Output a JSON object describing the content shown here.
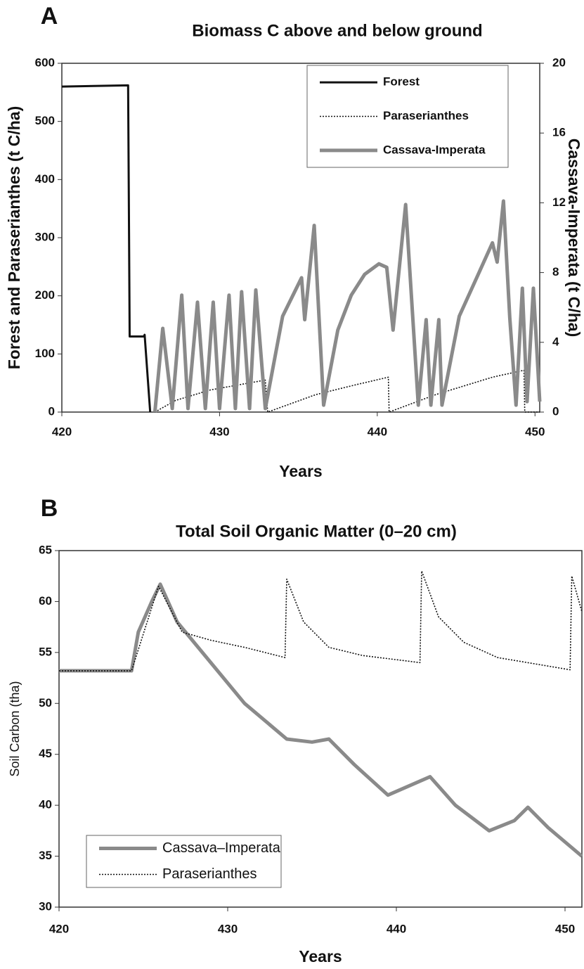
{
  "chart_data": [
    {
      "type": "line",
      "panel_label": "A",
      "title": "Biomass C above and below ground",
      "x_label": "Years",
      "y_label": "Forest and Paraserianthes (t C/ha)",
      "y2_label": "Cassava-Imperata (t C/ha)",
      "xlim": [
        420,
        450.3
      ],
      "xticks": [
        420,
        430,
        440,
        450
      ],
      "ylim": [
        0,
        600
      ],
      "yticks": [
        0,
        100,
        200,
        300,
        400,
        500,
        600
      ],
      "y2lim": [
        0,
        20
      ],
      "y2ticks": [
        0,
        4,
        8,
        12,
        16,
        20
      ],
      "legend": "upper right",
      "series": [
        {
          "name": "Forest",
          "color": "#111111",
          "style": "solid",
          "x": [
            420,
            424.2,
            424.25,
            424.3,
            425.2,
            425.25,
            425.6
          ],
          "values": [
            560,
            562,
            350,
            130,
            130,
            133,
            0
          ]
        },
        {
          "name": "Paraserianthes",
          "color": "#111111",
          "style": "dotted",
          "x": [
            425.9,
            427.2,
            429.4,
            432.9,
            433.05,
            436.1,
            438.8,
            440.7,
            440.75,
            443.7,
            447.3,
            449.3,
            449.35,
            450.3
          ],
          "values": [
            0,
            20,
            38,
            55,
            0,
            30,
            48,
            60,
            0,
            30,
            60,
            72,
            0,
            0
          ]
        },
        {
          "name": "Cassava-Imperata",
          "color": "#8a8a8a",
          "style": "thick",
          "axis": "y2",
          "x": [
            425.9,
            426.4,
            427.0,
            427.6,
            428.0,
            428.6,
            429.1,
            429.6,
            430.0,
            430.6,
            431.0,
            431.4,
            431.9,
            432.3,
            432.9,
            434.0,
            435.2,
            435.4,
            436.0,
            436.6,
            437.5,
            438.35,
            439.2,
            440.1,
            440.6,
            441.0,
            441.8,
            442.6,
            443.1,
            443.4,
            443.9,
            444.1,
            445.2,
            446.4,
            447.3,
            447.6,
            448.0,
            448.4,
            448.8,
            449.2,
            449.5,
            449.9,
            450.3
          ],
          "values": [
            0,
            4.8,
            0.2,
            6.7,
            0.2,
            6.3,
            0.2,
            6.3,
            0.2,
            6.7,
            0.2,
            6.9,
            0.2,
            7.0,
            0.2,
            5.5,
            7.7,
            5.3,
            10.7,
            0.4,
            4.7,
            6.7,
            7.9,
            8.5,
            8.3,
            4.7,
            11.9,
            0.4,
            5.3,
            0.4,
            5.3,
            0.4,
            5.5,
            7.9,
            9.7,
            8.6,
            12.1,
            5.4,
            0.4,
            7.1,
            0.6,
            7.1,
            0.6
          ]
        }
      ]
    },
    {
      "type": "line",
      "panel_label": "B",
      "title": "Total Soil Organic Matter (0–20 cm)",
      "x_label": "Years",
      "y_label": "Soil Carbon (tha)",
      "xlim": [
        420,
        451
      ],
      "xticks": [
        420,
        430,
        440,
        450
      ],
      "ylim": [
        30,
        65
      ],
      "yticks": [
        30,
        35,
        40,
        45,
        50,
        55,
        60,
        65
      ],
      "legend": "lower left",
      "series": [
        {
          "name": "Cassava–Imperata",
          "color": "#8a8a8a",
          "style": "thick",
          "x": [
            420,
            424.3,
            424.7,
            425.5,
            426,
            427,
            428.5,
            431,
            433.5,
            435,
            436,
            437.5,
            439.5,
            442,
            443.5,
            445.5,
            447,
            447.8,
            449,
            451
          ],
          "values": [
            53.2,
            53.2,
            57,
            60,
            61.7,
            58,
            55,
            50,
            46.5,
            46.2,
            46.5,
            44,
            41,
            42.8,
            40,
            37.5,
            38.5,
            39.8,
            37.8,
            35
          ]
        },
        {
          "name": "Paraserianthes",
          "color": "#111111",
          "style": "dotted",
          "x": [
            420,
            424.3,
            425.9,
            427.3,
            429,
            431,
            433.4,
            433.5,
            434.5,
            436,
            438,
            441.4,
            441.5,
            442.5,
            444,
            446,
            450.3,
            450.4,
            451
          ],
          "values": [
            53.2,
            53.2,
            61.5,
            57,
            56.2,
            55.5,
            54.5,
            62.2,
            58,
            55.5,
            54.7,
            54,
            63,
            58.5,
            56,
            54.5,
            53.3,
            62.5,
            59
          ]
        }
      ]
    }
  ]
}
